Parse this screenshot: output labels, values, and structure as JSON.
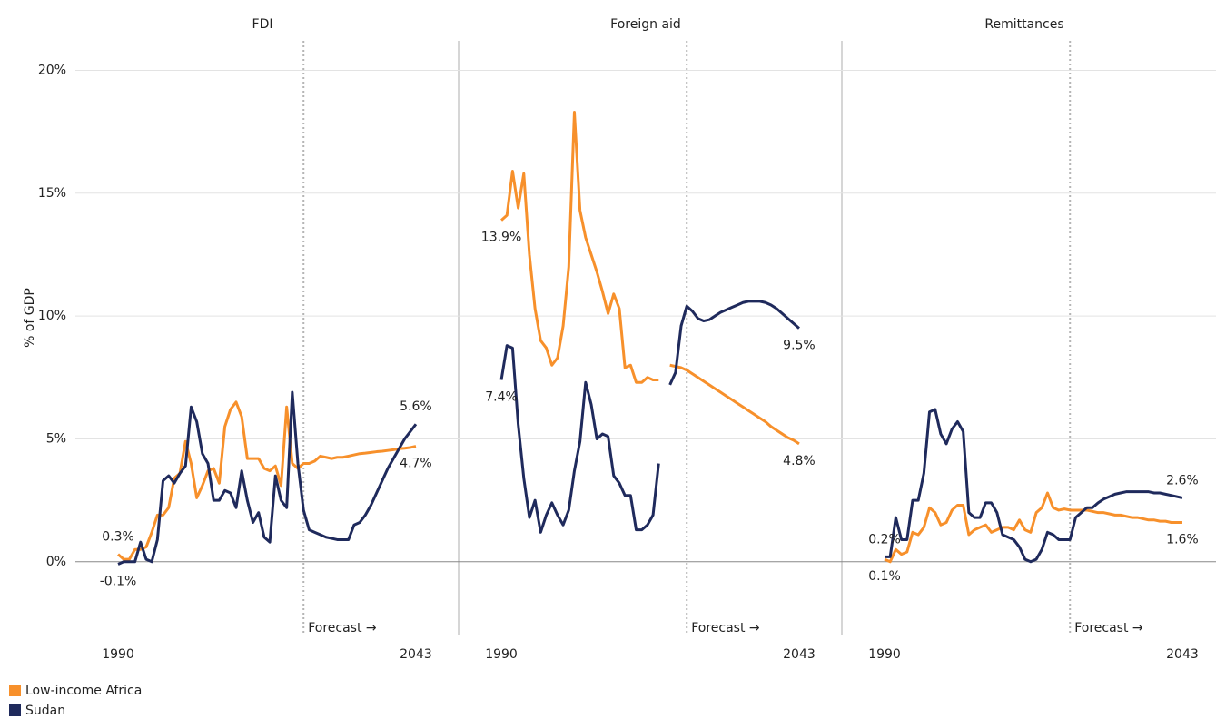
{
  "chart_data": [
    {
      "type": "line",
      "title": "FDI",
      "ylabel": "% of GDP",
      "x": [
        1990,
        1991,
        1992,
        1993,
        1994,
        1995,
        1996,
        1997,
        1998,
        1999,
        2000,
        2001,
        2002,
        2003,
        2004,
        2005,
        2006,
        2007,
        2008,
        2009,
        2010,
        2011,
        2012,
        2013,
        2014,
        2015,
        2016,
        2017,
        2018,
        2019,
        2020,
        2021,
        2022,
        2023,
        2024,
        2025,
        2026,
        2027,
        2028,
        2029,
        2030,
        2031,
        2032,
        2033,
        2034,
        2035,
        2036,
        2037,
        2038,
        2039,
        2040,
        2041,
        2042,
        2043
      ],
      "xlim": [
        1982.4,
        2050.6
      ],
      "xticks": [
        1990,
        2043
      ],
      "ylim": [
        -3,
        21.2
      ],
      "yticks": [
        {
          "value": 0,
          "label": "0%"
        },
        {
          "value": 5,
          "label": "5%"
        },
        {
          "value": 10,
          "label": "10%"
        },
        {
          "value": 15,
          "label": "15%"
        },
        {
          "value": 20,
          "label": "20%"
        }
      ],
      "grid": true,
      "forecast_start": 2023,
      "annotation": "Forecast →",
      "series": [
        {
          "name": "Low-income Africa",
          "color": "#f7902b",
          "values": [
            0.3,
            0.1,
            0.1,
            0.5,
            0.5,
            0.6,
            1.2,
            1.9,
            1.9,
            2.2,
            3.4,
            3.6,
            4.9,
            4.0,
            2.6,
            3.1,
            3.7,
            3.8,
            3.2,
            5.5,
            6.2,
            6.5,
            5.9,
            4.2,
            4.2,
            4.2,
            3.8,
            3.7,
            3.9,
            3.1,
            6.3,
            4.0,
            3.8,
            4.0,
            4.0,
            4.1,
            4.3,
            4.25,
            4.2,
            4.25,
            4.25,
            4.3,
            4.35,
            4.4,
            4.42,
            4.45,
            4.48,
            4.5,
            4.53,
            4.56,
            4.6,
            4.62,
            4.65,
            4.7
          ],
          "value_labels": [
            "0.3%",
            null,
            null,
            null,
            null,
            null,
            null,
            null,
            null,
            null,
            null,
            null,
            null,
            null,
            null,
            null,
            null,
            null,
            null,
            null,
            null,
            null,
            null,
            null,
            null,
            null,
            null,
            null,
            null,
            null,
            null,
            null,
            null,
            null,
            null,
            null,
            null,
            null,
            null,
            null,
            null,
            null,
            null,
            null,
            null,
            null,
            null,
            null,
            null,
            null,
            null,
            null,
            null,
            "4.7%"
          ]
        },
        {
          "name": "Sudan",
          "color": "#1f2a5c",
          "values": [
            -0.1,
            0.0,
            0.0,
            0.0,
            0.8,
            0.1,
            0.0,
            0.9,
            3.3,
            3.5,
            3.2,
            3.6,
            3.9,
            6.3,
            5.7,
            4.4,
            4.0,
            2.5,
            2.5,
            2.9,
            2.8,
            2.2,
            3.7,
            2.5,
            1.6,
            2.0,
            1.0,
            0.8,
            3.5,
            2.5,
            2.2,
            6.9,
            4.0,
            2.1,
            1.3,
            1.2,
            1.1,
            1.0,
            0.95,
            0.9,
            0.9,
            0.9,
            1.5,
            1.6,
            1.9,
            2.3,
            2.8,
            3.3,
            3.8,
            4.2,
            4.6,
            5.0,
            5.3,
            5.6
          ],
          "value_labels": [
            "-0.1%",
            null,
            null,
            null,
            null,
            null,
            null,
            null,
            null,
            null,
            null,
            null,
            null,
            null,
            null,
            null,
            null,
            null,
            null,
            null,
            null,
            null,
            null,
            null,
            null,
            null,
            null,
            null,
            null,
            null,
            null,
            null,
            null,
            null,
            null,
            null,
            null,
            null,
            null,
            null,
            null,
            null,
            null,
            null,
            null,
            null,
            null,
            null,
            null,
            null,
            null,
            null,
            null,
            "5.6%"
          ]
        }
      ]
    },
    {
      "type": "line",
      "title": "Foreign aid",
      "x": [
        1990,
        1991,
        1992,
        1993,
        1994,
        1995,
        1996,
        1997,
        1998,
        1999,
        2000,
        2001,
        2002,
        2003,
        2004,
        2005,
        2006,
        2007,
        2008,
        2009,
        2010,
        2011,
        2012,
        2013,
        2014,
        2015,
        2016,
        2017,
        2018,
        2019,
        2020,
        2021,
        2022,
        2023,
        2024,
        2025,
        2026,
        2027,
        2028,
        2029,
        2030,
        2031,
        2032,
        2033,
        2034,
        2035,
        2036,
        2037,
        2038,
        2039,
        2040,
        2041,
        2042,
        2043
      ],
      "xlim": [
        1982.4,
        2050.6
      ],
      "xticks": [
        1990,
        2043
      ],
      "ylim": [
        -3,
        21.2
      ],
      "forecast_start": 2023,
      "annotation": "Forecast →",
      "series": [
        {
          "name": "Low-income Africa",
          "color": "#f7902b",
          "values": [
            13.9,
            14.1,
            15.9,
            14.4,
            15.8,
            12.5,
            10.3,
            9.0,
            8.7,
            8.0,
            8.3,
            9.6,
            12.0,
            18.3,
            14.3,
            13.2,
            12.5,
            11.8,
            11.0,
            10.1,
            10.9,
            10.3,
            7.9,
            8.0,
            7.3,
            7.3,
            7.5,
            7.4,
            7.4,
            null,
            8.0,
            7.95,
            7.9,
            7.8,
            7.65,
            7.5,
            7.35,
            7.2,
            7.05,
            6.9,
            6.75,
            6.6,
            6.45,
            6.3,
            6.15,
            6.0,
            5.85,
            5.7,
            5.5,
            5.35,
            5.2,
            5.05,
            4.95,
            4.8
          ],
          "value_labels": [
            "13.9%",
            null,
            null,
            null,
            null,
            null,
            null,
            null,
            null,
            null,
            null,
            null,
            null,
            null,
            null,
            null,
            null,
            null,
            null,
            null,
            null,
            null,
            null,
            null,
            null,
            null,
            null,
            null,
            null,
            null,
            null,
            null,
            null,
            null,
            null,
            null,
            null,
            null,
            null,
            null,
            null,
            null,
            null,
            null,
            null,
            null,
            null,
            null,
            null,
            null,
            null,
            null,
            null,
            "4.8%"
          ]
        },
        {
          "name": "Sudan",
          "color": "#1f2a5c",
          "values": [
            7.4,
            8.8,
            8.7,
            5.6,
            3.4,
            1.8,
            2.5,
            1.2,
            1.9,
            2.4,
            1.9,
            1.5,
            2.1,
            3.7,
            4.9,
            7.3,
            6.4,
            5.0,
            5.2,
            5.1,
            3.5,
            3.2,
            2.7,
            2.7,
            1.3,
            1.3,
            1.5,
            1.9,
            4.0,
            null,
            7.2,
            7.7,
            9.6,
            10.4,
            10.2,
            9.9,
            9.8,
            9.85,
            10.0,
            10.15,
            10.25,
            10.35,
            10.45,
            10.55,
            10.6,
            10.6,
            10.6,
            10.55,
            10.45,
            10.3,
            10.1,
            9.9,
            9.7,
            9.5
          ],
          "value_labels": [
            "7.4%",
            null,
            null,
            null,
            null,
            null,
            null,
            null,
            null,
            null,
            null,
            null,
            null,
            null,
            null,
            null,
            null,
            null,
            null,
            null,
            null,
            null,
            null,
            null,
            null,
            null,
            null,
            null,
            null,
            null,
            null,
            null,
            null,
            null,
            null,
            null,
            null,
            null,
            null,
            null,
            null,
            null,
            null,
            null,
            null,
            null,
            null,
            null,
            null,
            null,
            null,
            null,
            null,
            "9.5%"
          ]
        }
      ]
    },
    {
      "type": "line",
      "title": "Remittances",
      "x": [
        1990,
        1991,
        1992,
        1993,
        1994,
        1995,
        1996,
        1997,
        1998,
        1999,
        2000,
        2001,
        2002,
        2003,
        2004,
        2005,
        2006,
        2007,
        2008,
        2009,
        2010,
        2011,
        2012,
        2013,
        2014,
        2015,
        2016,
        2017,
        2018,
        2019,
        2020,
        2021,
        2022,
        2023,
        2024,
        2025,
        2026,
        2027,
        2028,
        2029,
        2030,
        2031,
        2032,
        2033,
        2034,
        2035,
        2036,
        2037,
        2038,
        2039,
        2040,
        2041,
        2042,
        2043
      ],
      "xlim": [
        1982.4,
        2050.6
      ],
      "xticks": [
        1990,
        2043
      ],
      "ylim": [
        -3,
        21.2
      ],
      "forecast_start": 2023,
      "annotation": "Forecast →",
      "series": [
        {
          "name": "Low-income Africa",
          "color": "#f7902b",
          "values": [
            0.1,
            0.0,
            0.5,
            0.3,
            0.4,
            1.2,
            1.1,
            1.4,
            2.2,
            2.0,
            1.5,
            1.6,
            2.1,
            2.3,
            2.3,
            1.1,
            1.3,
            1.4,
            1.5,
            1.2,
            1.3,
            1.4,
            1.4,
            1.3,
            1.7,
            1.3,
            1.2,
            2.0,
            2.2,
            2.8,
            2.2,
            2.1,
            2.15,
            2.1,
            2.1,
            2.1,
            2.1,
            2.05,
            2.0,
            2.0,
            1.95,
            1.9,
            1.9,
            1.85,
            1.8,
            1.8,
            1.75,
            1.7,
            1.7,
            1.65,
            1.65,
            1.6,
            1.6,
            1.6
          ],
          "value_labels": [
            "0.1%",
            null,
            null,
            null,
            null,
            null,
            null,
            null,
            null,
            null,
            null,
            null,
            null,
            null,
            null,
            null,
            null,
            null,
            null,
            null,
            null,
            null,
            null,
            null,
            null,
            null,
            null,
            null,
            null,
            null,
            null,
            null,
            null,
            null,
            null,
            null,
            null,
            null,
            null,
            null,
            null,
            null,
            null,
            null,
            null,
            null,
            null,
            null,
            null,
            null,
            null,
            null,
            null,
            "1.6%"
          ]
        },
        {
          "name": "Sudan",
          "color": "#1f2a5c",
          "values": [
            0.2,
            0.2,
            1.8,
            0.9,
            0.9,
            2.5,
            2.5,
            3.6,
            6.1,
            6.2,
            5.2,
            4.8,
            5.4,
            5.7,
            5.3,
            2.0,
            1.8,
            1.8,
            2.4,
            2.4,
            2.0,
            1.1,
            1.0,
            0.9,
            0.6,
            0.1,
            0.0,
            0.1,
            0.5,
            1.2,
            1.1,
            0.9,
            0.9,
            0.9,
            1.8,
            2.0,
            2.2,
            2.2,
            2.4,
            2.55,
            2.65,
            2.75,
            2.8,
            2.85,
            2.85,
            2.85,
            2.85,
            2.85,
            2.8,
            2.8,
            2.75,
            2.7,
            2.65,
            2.6
          ],
          "value_labels": [
            "0.2%",
            null,
            null,
            null,
            null,
            null,
            null,
            null,
            null,
            null,
            null,
            null,
            null,
            null,
            null,
            null,
            null,
            null,
            null,
            null,
            null,
            null,
            null,
            null,
            null,
            null,
            null,
            null,
            null,
            null,
            null,
            null,
            null,
            null,
            null,
            null,
            null,
            null,
            null,
            null,
            null,
            null,
            null,
            null,
            null,
            null,
            null,
            null,
            null,
            null,
            null,
            null,
            null,
            "2.6%"
          ]
        }
      ]
    }
  ]
}
